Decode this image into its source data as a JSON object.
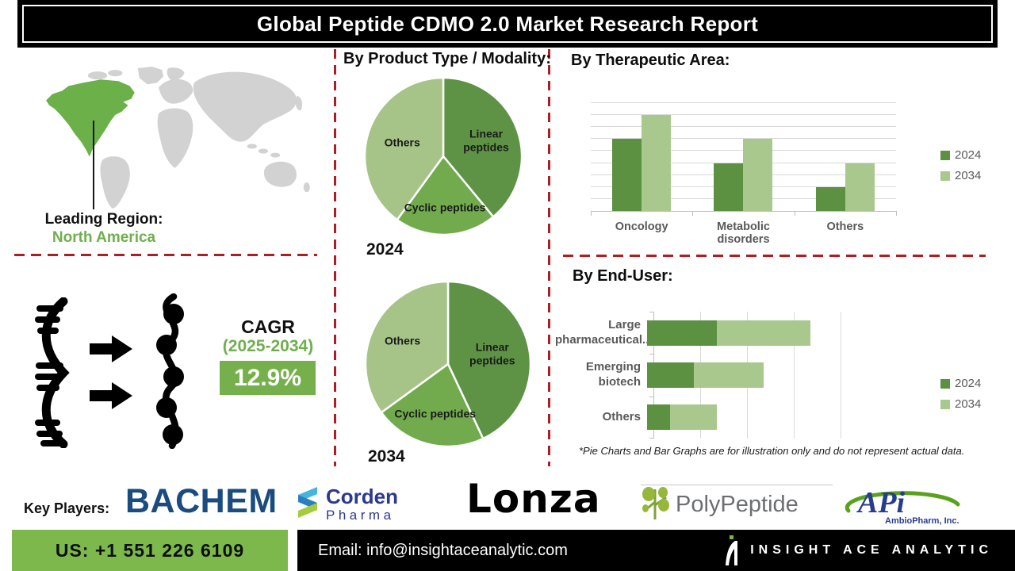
{
  "title": "Global Peptide CDMO 2.0 Market Research Report",
  "map": {
    "leading_region_label": "Leading Region:",
    "leading_region_value": "North America",
    "highlight_color": "#6cb04a",
    "base_color": "#d2d2d2"
  },
  "cagr": {
    "label": "CAGR",
    "period": "(2025-2034)",
    "value": "12.9%",
    "box_color": "#76b04c"
  },
  "headings": {
    "product_type": "By Product Type / Modality:",
    "therapeutic": "By Therapeutic Area:",
    "end_user": "By End-User:"
  },
  "footnote": "*Pie Charts and Bar Graphs are for illustration only and do not represent actual data.",
  "key_players": {
    "label": "Key Players:",
    "bachem": "BACHEM",
    "corden_line1": "Corden",
    "corden_line2": "Pharma",
    "lonza": "Lonza",
    "polypeptide": "PolyPeptide",
    "api": "APi",
    "api_sub": "AmbioPharm, Inc."
  },
  "footer": {
    "phone": "US: +1 551 226 6109",
    "email": "Email: info@insightaceanalytic.com",
    "brand": "INSIGHT ACE ANALYTIC"
  },
  "colors": {
    "series_2024": "#5b9141",
    "series_2034": "#a9c88e",
    "pie_linear": "#5e9345",
    "pie_cyclic": "#71ab4d",
    "pie_others": "#a6c487",
    "dashed_red": "#ab1f24",
    "footer_green": "#7cb84b",
    "cagr_green": "#76b04c",
    "text_gray": "#595959"
  },
  "chart_data": [
    {
      "id": "pie_2024",
      "type": "pie",
      "title": "2024",
      "slices": [
        {
          "label": "Linear peptides",
          "value": 39,
          "color": "#5e9345",
          "label_r": 0.58,
          "wrap": true
        },
        {
          "label": "Cyclic peptides",
          "value": 21,
          "color": "#71ab4d",
          "label_r": 0.66
        },
        {
          "label": "Others",
          "value": 40,
          "color": "#a6c487",
          "label_r": 0.55
        }
      ]
    },
    {
      "id": "pie_2034",
      "type": "pie",
      "title": "2034",
      "slices": [
        {
          "label": "Linear peptides",
          "value": 43,
          "color": "#5e9345",
          "label_r": 0.55,
          "wrap": true
        },
        {
          "label": "Cyclic peptides",
          "value": 22,
          "color": "#71ab4d",
          "label_r": 0.63
        },
        {
          "label": "Others",
          "value": 35,
          "color": "#a6c487",
          "label_r": 0.62
        }
      ]
    },
    {
      "id": "therapeutic_area",
      "type": "bar",
      "title": "By Therapeutic Area:",
      "categories": [
        "Oncology",
        "Metabolic disorders",
        "Others"
      ],
      "series": [
        {
          "name": "2024",
          "color": "#5b9141",
          "values": [
            6,
            4,
            2
          ]
        },
        {
          "name": "2034",
          "color": "#a9c88e",
          "values": [
            8,
            6,
            4
          ]
        }
      ],
      "ylim": [
        0,
        9
      ],
      "gridline_step": 1,
      "grid": true,
      "legend_position": "right"
    },
    {
      "id": "end_user",
      "type": "bar-horizontal-stacked",
      "title": "By End-User:",
      "categories": [
        "Large pharmaceutical...",
        "Emerging biotech",
        "Others"
      ],
      "series": [
        {
          "name": "2024",
          "color": "#5b9141",
          "values": [
            1.5,
            1,
            0.5
          ]
        },
        {
          "name": "2034",
          "color": "#a9c88e",
          "values": [
            2,
            1.5,
            1
          ]
        }
      ],
      "xlim": [
        0,
        4.5
      ],
      "gridline_step": 1,
      "grid": true,
      "legend_position": "right"
    }
  ]
}
